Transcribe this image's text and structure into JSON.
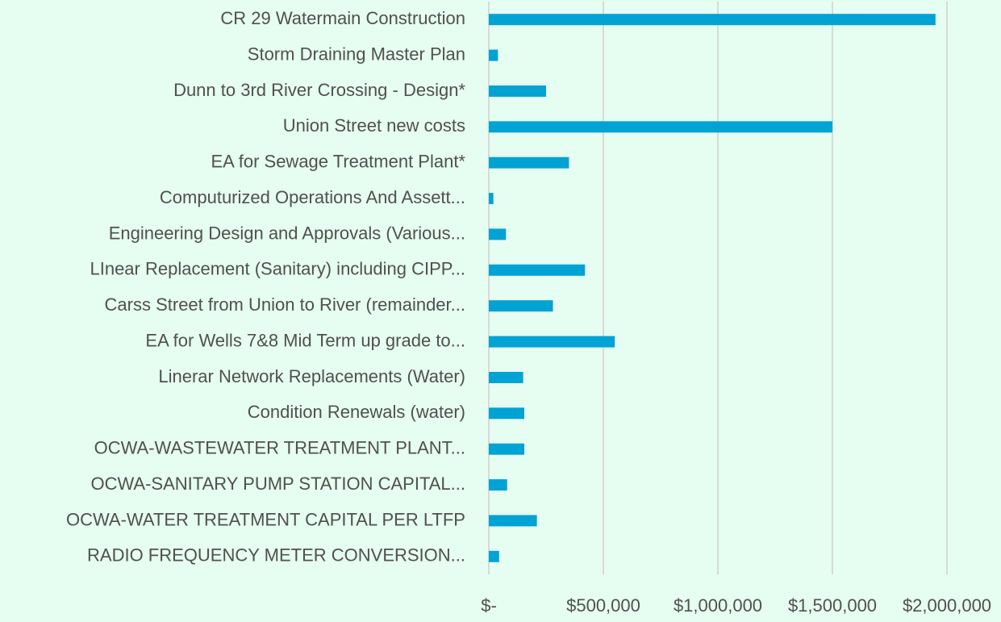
{
  "chart_data": {
    "type": "hbar",
    "categories": [
      "CR 29 Watermain Construction",
      "Storm Draining Master Plan",
      "Dunn to 3rd River Crossing - Design*",
      "Union Street new costs",
      "EA for Sewage Treatment Plant*",
      "Computurized Operations And Assett...",
      "Engineering Design and Approvals (Various...",
      "LInear Replacement (Sanitary) including CIPP...",
      "Carss Street from Union to River (remainder...",
      "EA for Wells 7&8 Mid Term up grade to...",
      "Linerar Network Replacements (Water)",
      "Condition Renewals (water)",
      "OCWA-WASTEWATER TREATMENT PLANT...",
      "OCWA-SANITARY PUMP STATION CAPITAL...",
      "OCWA-WATER TREATMENT CAPITAL PER LTFP",
      "RADIO FREQUENCY METER CONVERSION..."
    ],
    "values": [
      1950000,
      40000,
      250000,
      1500000,
      350000,
      20000,
      75000,
      420000,
      280000,
      550000,
      150000,
      155000,
      155000,
      80000,
      210000,
      45000
    ],
    "color": "#00a3d3",
    "xlim": [
      0,
      2000000
    ],
    "xticks": [
      {
        "value": 0,
        "label": "$-"
      },
      {
        "value": 500000,
        "label": "$500,000"
      },
      {
        "value": 1000000,
        "label": "$1,000,000"
      },
      {
        "value": 1500000,
        "label": "$1,500,000"
      },
      {
        "value": 2000000,
        "label": "$2,000,000"
      }
    ],
    "grid": true
  }
}
